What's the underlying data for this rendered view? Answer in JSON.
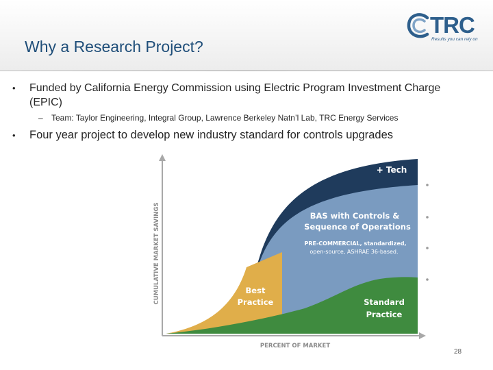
{
  "slide": {
    "title": "Why a Research Project?",
    "page_number": "28"
  },
  "logo": {
    "word": "TRC",
    "tagline": "Results you can rely on",
    "icon": "trc-swirl-icon"
  },
  "bullets": [
    {
      "text": "Funded by California Energy Commission using Electric Program Investment Charge (EPIC)",
      "sub": "Team: Taylor Engineering, Integral Group, Lawrence Berkeley Natn’l Lab, TRC Energy Services"
    },
    {
      "text": "Four year project to develop new industry standard for controls upgrades"
    }
  ],
  "diagram": {
    "y_axis_label": "CUMULATIVE MARKET SAVINGS",
    "x_axis_label": "PERCENT OF MARKET",
    "tech_label": "+ Tech",
    "bas_label_line1": "BAS with Controls &",
    "bas_label_line2": "Sequence of Operations",
    "bas_sub_line1": "PRE-COMMERCIAL, standardized,",
    "bas_sub_line2": "open-source, ASHRAE 36-based.",
    "best_line1": "Best",
    "best_line2": "Practice",
    "standard_line1": "Standard",
    "standard_line2": "Practice",
    "colors": {
      "tech": "#1f3b5c",
      "bas": "#7a9bc0",
      "best": "#e0ae4a",
      "standard": "#3f8b3f",
      "axis": "#9a9a9a"
    }
  }
}
